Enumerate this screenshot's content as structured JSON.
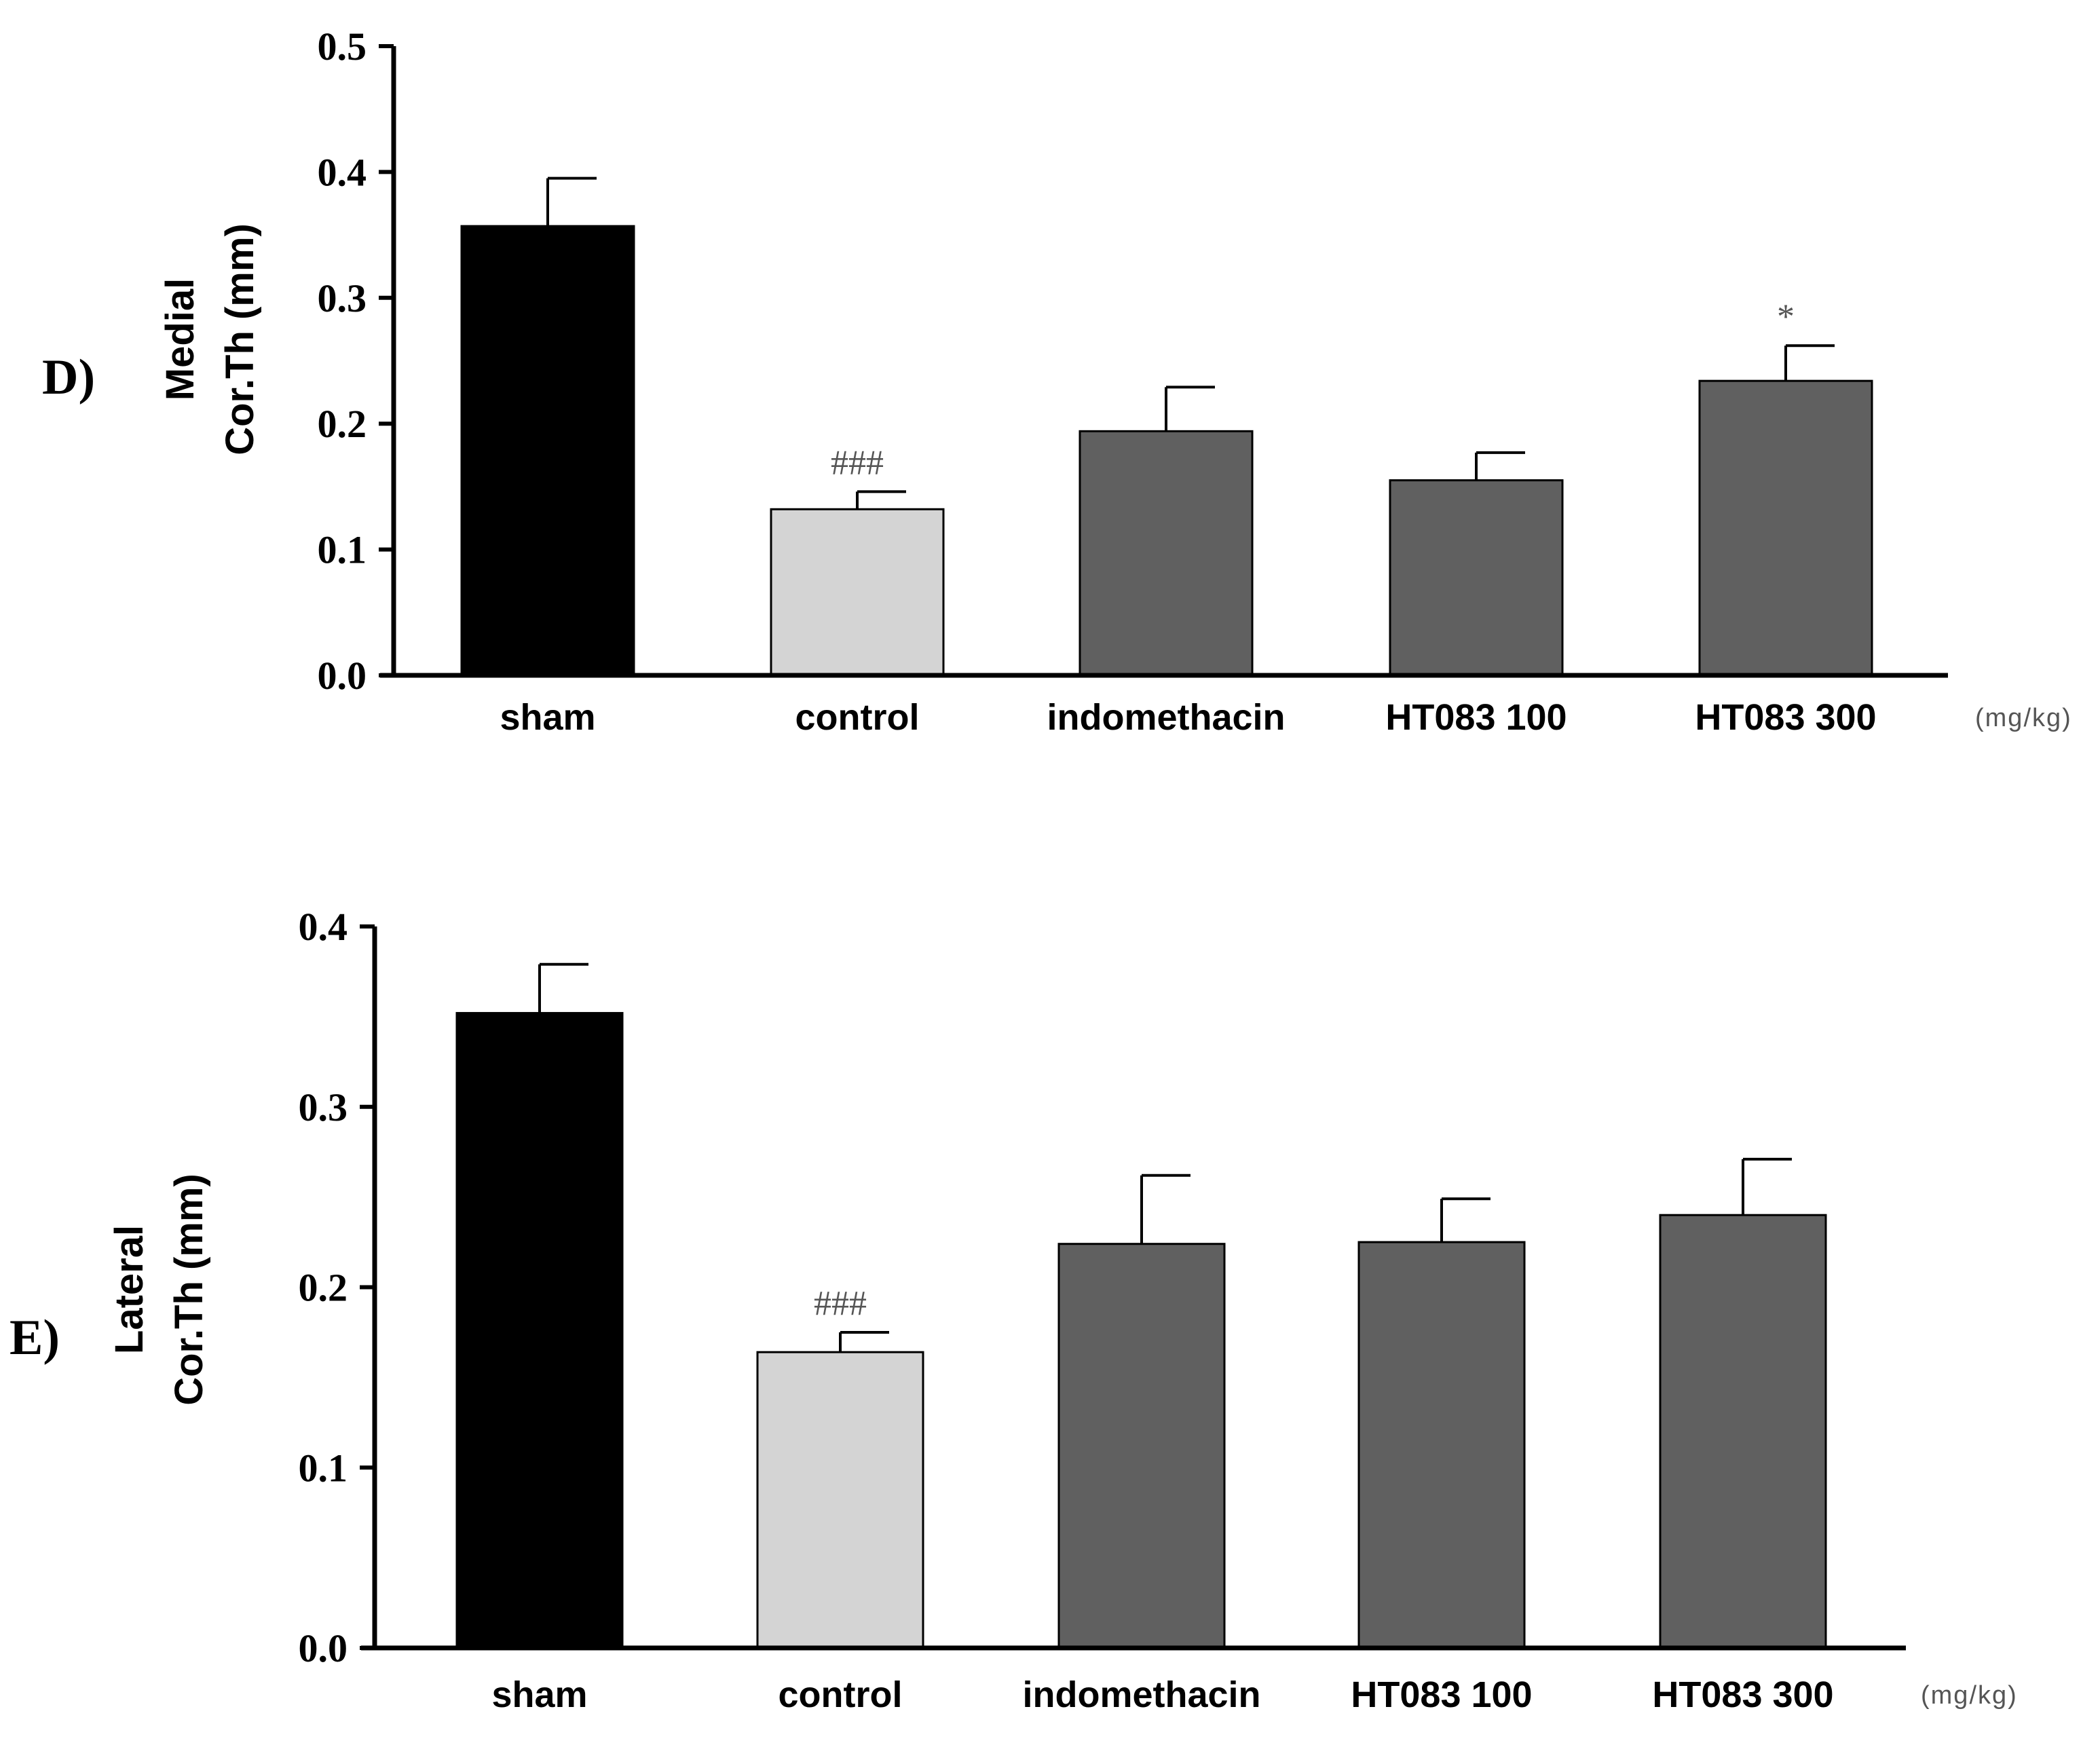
{
  "chart_data": [
    {
      "type": "bar",
      "panel": "D)",
      "ylabel_line1": "Medial",
      "ylabel_line2": "Cor.Th (mm)",
      "categories": [
        "sham",
        "control",
        "indomethacin",
        "HT083 100",
        "HT083 300"
      ],
      "values": [
        0.357,
        0.132,
        0.194,
        0.155,
        0.234
      ],
      "errors": [
        0.038,
        0.014,
        0.035,
        0.022,
        0.028
      ],
      "annotations": [
        "",
        "###",
        "",
        "",
        "*"
      ],
      "colors": [
        "#000000",
        "#d4d4d4",
        "#606060",
        "#606060",
        "#606060"
      ],
      "ylim": [
        0,
        0.5
      ],
      "yticks": [
        "0.0",
        "0.1",
        "0.2",
        "0.3",
        "0.4",
        "0.5"
      ],
      "unit": "(mg/kg)"
    },
    {
      "type": "bar",
      "panel": "E)",
      "ylabel_line1": "Lateral",
      "ylabel_line2": "Cor.Th (mm)",
      "categories": [
        "sham",
        "control",
        "indomethacin",
        "HT083 100",
        "HT083 300"
      ],
      "values": [
        0.352,
        0.164,
        0.224,
        0.225,
        0.24
      ],
      "errors": [
        0.027,
        0.011,
        0.038,
        0.024,
        0.031
      ],
      "annotations": [
        "",
        "###",
        "",
        "",
        ""
      ],
      "colors": [
        "#000000",
        "#d4d4d4",
        "#606060",
        "#606060",
        "#606060"
      ],
      "ylim": [
        0,
        0.4
      ],
      "yticks": [
        "0.0",
        "0.1",
        "0.2",
        "0.3",
        "0.4"
      ],
      "unit": "(mg/kg)"
    }
  ]
}
